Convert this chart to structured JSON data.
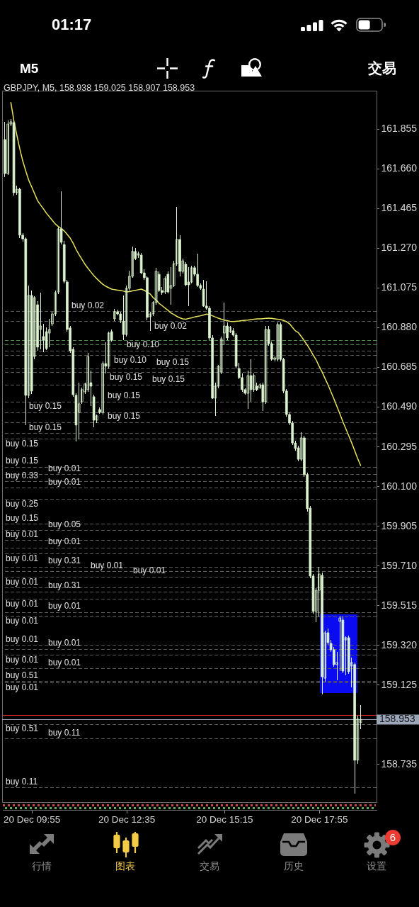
{
  "chart_data": {
    "type": "candlestick",
    "title": "GBPJPY, M5, 158.938 159.025 158.907 158.953",
    "color": "#dcf3cf",
    "categories": [
      null,
      null,
      null,
      null,
      null,
      null,
      null,
      null,
      null,
      "20 Dec 09:55",
      null,
      null,
      null,
      null,
      null,
      null,
      null,
      null,
      null,
      null,
      null,
      null,
      null,
      null,
      null,
      null,
      null,
      null,
      null,
      null,
      null,
      null,
      null,
      null,
      null,
      null,
      null,
      null,
      null,
      null,
      null,
      "20 Dec 12:35",
      null,
      null,
      null,
      null,
      null,
      null,
      null,
      null,
      null,
      null,
      null,
      null,
      null,
      null,
      null,
      null,
      null,
      null,
      null,
      null,
      null,
      null,
      null,
      null,
      null,
      null,
      null,
      null,
      null,
      null,
      null,
      null,
      "20 Dec 15:15",
      null,
      null,
      null,
      null,
      null,
      null,
      null,
      null,
      null,
      null,
      null,
      null,
      null,
      null,
      null,
      null,
      null,
      null,
      null,
      null,
      null,
      null,
      null,
      null,
      null,
      null,
      null,
      null,
      null,
      null,
      null,
      "20 Dec 17:55",
      null,
      null,
      null,
      null,
      null,
      null,
      null,
      null,
      null,
      null,
      null,
      null,
      null,
      null
    ],
    "ohlc": [
      [
        161.803,
        161.89,
        161.618,
        161.636
      ],
      [
        161.636,
        161.897,
        161.629,
        161.879
      ],
      [
        161.879,
        161.904,
        161.869,
        161.89
      ],
      [
        161.886,
        161.897,
        161.528,
        161.542
      ],
      [
        161.542,
        161.576,
        161.531,
        161.559
      ],
      [
        161.559,
        161.566,
        161.319,
        161.333
      ],
      [
        161.333,
        161.343,
        161.301,
        161.315
      ],
      [
        161.315,
        161.322,
        160.4,
        160.546
      ],
      [
        160.546,
        161.086,
        160.532,
        161.037
      ],
      [
        161.037,
        161.061,
        160.553,
        160.567
      ],
      [
        160.737,
        161.033,
        160.723,
        161.026
      ],
      [
        160.991,
        161.009,
        160.765,
        160.783
      ],
      [
        160.87,
        161.051,
        160.772,
        160.887
      ],
      [
        160.835,
        160.897,
        160.758,
        160.817
      ],
      [
        160.859,
        160.88,
        160.769,
        160.776
      ],
      [
        160.852,
        160.922,
        160.783,
        160.87
      ],
      [
        160.897,
        160.957,
        160.887,
        160.946
      ],
      [
        160.946,
        161.061,
        160.936,
        161.051
      ],
      [
        161.054,
        161.375,
        161.044,
        161.364
      ],
      [
        161.364,
        161.549,
        161.287,
        161.298
      ],
      [
        161.287,
        161.305,
        161.096,
        161.106
      ],
      [
        161.103,
        161.113,
        160.859,
        160.87
      ],
      [
        160.877,
        160.887,
        160.755,
        160.765
      ],
      [
        160.772,
        160.783,
        160.539,
        160.549
      ],
      [
        160.546,
        160.556,
        160.319,
        160.4
      ],
      [
        160.462,
        160.608,
        160.33,
        160.504
      ],
      [
        160.514,
        160.584,
        160.504,
        160.574
      ],
      [
        160.563,
        160.608,
        160.553,
        160.602
      ],
      [
        160.574,
        160.755,
        160.563,
        160.737
      ],
      [
        160.608,
        160.668,
        160.494,
        160.591
      ],
      [
        160.539,
        160.549,
        160.389,
        160.424
      ],
      [
        160.424,
        160.452,
        160.41,
        160.445
      ],
      [
        160.476,
        160.487,
        160.455,
        160.462
      ],
      [
        160.462,
        160.713,
        160.452,
        160.702
      ],
      [
        160.702,
        160.807,
        160.654,
        160.689
      ],
      [
        160.689,
        160.859,
        160.678,
        160.852
      ],
      [
        160.859,
        160.87,
        160.81,
        160.817
      ],
      [
        160.922,
        160.971,
        160.911,
        160.957
      ],
      [
        160.957,
        160.967,
        160.939,
        160.946
      ],
      [
        160.946,
        160.957,
        160.901,
        160.915
      ],
      [
        160.911,
        161.037,
        160.817,
        160.845
      ],
      [
        160.845,
        161.086,
        160.835,
        161.072
      ],
      [
        161.072,
        161.159,
        161.061,
        161.131
      ],
      [
        161.131,
        161.277,
        161.124,
        161.253
      ],
      [
        161.253,
        161.27,
        161.211,
        161.218
      ],
      [
        161.235,
        161.253,
        161.221,
        161.242
      ],
      [
        161.235,
        161.246,
        161.141,
        161.148
      ],
      [
        161.148,
        161.166,
        161.113,
        161.124
      ],
      [
        161.124,
        161.131,
        160.915,
        160.929
      ],
      [
        160.932,
        160.957,
        160.863,
        160.946
      ],
      [
        160.946,
        161.009,
        160.936,
        161.002
      ],
      [
        161.002,
        161.173,
        160.991,
        161.155
      ],
      [
        161.141,
        161.155,
        161.054,
        161.061
      ],
      [
        161.061,
        161.079,
        161.04,
        161.051
      ],
      [
        161.054,
        161.131,
        161.044,
        161.12
      ],
      [
        161.141,
        161.155,
        161.047,
        161.054
      ],
      [
        161.072,
        161.176,
        160.991,
        161.086
      ],
      [
        161.086,
        161.207,
        161.079,
        161.193
      ],
      [
        161.193,
        161.472,
        161.183,
        161.312
      ],
      [
        161.312,
        161.333,
        161.131,
        161.155
      ],
      [
        161.155,
        161.218,
        161.145,
        161.207
      ],
      [
        161.19,
        161.2,
        161.082,
        161.089
      ],
      [
        161.103,
        161.176,
        160.985,
        161.089
      ],
      [
        161.103,
        161.183,
        161.096,
        161.173
      ],
      [
        161.173,
        161.183,
        161.131,
        161.141
      ],
      [
        161.141,
        161.242,
        161.079,
        161.086
      ],
      [
        161.086,
        161.096,
        161.065,
        161.072
      ],
      [
        161.068,
        161.113,
        160.981,
        160.985
      ],
      [
        160.985,
        161.106,
        160.967,
        160.974
      ],
      [
        160.974,
        160.985,
        160.817,
        160.828
      ],
      [
        160.828,
        160.842,
        160.528,
        160.532
      ],
      [
        160.532,
        160.608,
        160.445,
        160.591
      ],
      [
        160.591,
        160.696,
        160.581,
        160.689
      ],
      [
        160.661,
        160.835,
        160.65,
        160.824
      ],
      [
        160.852,
        161.002,
        160.793,
        160.887
      ],
      [
        160.887,
        160.904,
        160.817,
        160.828
      ],
      [
        160.859,
        160.887,
        160.852,
        160.88
      ],
      [
        160.863,
        160.877,
        160.835,
        160.842
      ],
      [
        160.842,
        160.852,
        160.678,
        160.689
      ],
      [
        160.678,
        160.706,
        160.626,
        160.633
      ],
      [
        160.633,
        160.654,
        160.563,
        160.574
      ],
      [
        160.574,
        160.581,
        160.549,
        160.556
      ],
      [
        160.556,
        160.668,
        160.48,
        160.643
      ],
      [
        160.643,
        160.723,
        160.514,
        160.574
      ],
      [
        160.574,
        160.654,
        160.563,
        160.643
      ],
      [
        160.591,
        160.608,
        160.567,
        160.574
      ],
      [
        160.584,
        160.605,
        160.577,
        160.598
      ],
      [
        160.598,
        160.608,
        160.469,
        160.514
      ],
      [
        160.514,
        160.887,
        160.504,
        160.87
      ],
      [
        160.87,
        160.887,
        160.79,
        160.8
      ],
      [
        160.8,
        160.81,
        160.716,
        160.723
      ],
      [
        160.723,
        160.737,
        160.713,
        160.73
      ],
      [
        160.723,
        160.904,
        160.713,
        160.894
      ],
      [
        160.894,
        160.904,
        160.713,
        160.723
      ],
      [
        160.723,
        160.73,
        160.556,
        160.567
      ],
      [
        160.567,
        160.577,
        160.441,
        160.452
      ],
      [
        160.452,
        160.462,
        160.4,
        160.41
      ],
      [
        160.41,
        160.42,
        160.302,
        160.312
      ],
      [
        160.312,
        160.323,
        160.274,
        160.285
      ],
      [
        160.288,
        160.299,
        160.222,
        160.232
      ],
      [
        160.232,
        160.365,
        160.222,
        160.337
      ],
      [
        160.337,
        160.347,
        160.145,
        160.156
      ],
      [
        160.156,
        160.166,
        159.975,
        159.989
      ],
      [
        159.992,
        160.003,
        159.647,
        159.658
      ],
      [
        159.658,
        159.668,
        159.473,
        159.484
      ],
      [
        159.484,
        159.599,
        159.432,
        159.588
      ],
      [
        159.588,
        159.703,
        159.459,
        159.668
      ],
      [
        159.661,
        159.675,
        159.076,
        159.163
      ],
      [
        159.156,
        159.39,
        159.139,
        159.379
      ],
      [
        159.379,
        159.4,
        159.32,
        159.331
      ],
      [
        159.327,
        159.344,
        159.285,
        159.296
      ],
      [
        159.296,
        159.31,
        159.212,
        159.223
      ],
      [
        159.223,
        159.285,
        159.146,
        159.233
      ],
      [
        159.435,
        159.459,
        159.191,
        159.452
      ],
      [
        159.442,
        159.459,
        159.181,
        159.191
      ],
      [
        159.344,
        159.362,
        159.17,
        159.355
      ],
      [
        159.355,
        159.365,
        159.177,
        159.188
      ],
      [
        159.216,
        159.257,
        159.111,
        159.233
      ],
      [
        159.223,
        159.233,
        158.589,
        158.753
      ],
      [
        158.753,
        158.972,
        158.735,
        158.955
      ],
      [
        158.938,
        159.025,
        158.907,
        158.953
      ]
    ],
    "series": [
      {
        "type": "line",
        "color": "#e9e35c",
        "values": [
          null,
          null,
          161.985,
          161.897,
          161.826,
          161.758,
          161.698,
          161.65,
          161.604,
          161.571,
          161.537,
          161.503,
          161.482,
          161.462,
          161.441,
          161.423,
          161.406,
          161.388,
          161.376,
          161.366,
          161.354,
          161.337,
          161.319,
          161.294,
          161.263,
          161.237,
          161.214,
          161.19,
          161.171,
          161.152,
          161.134,
          161.119,
          161.105,
          161.092,
          161.082,
          161.075,
          161.068,
          161.065,
          161.063,
          161.061,
          161.058,
          161.054,
          161.056,
          161.059,
          161.062,
          161.065,
          161.068,
          161.062,
          161.054,
          161.044,
          161.026,
          161.015,
          160.998,
          160.987,
          160.975,
          160.964,
          160.951,
          160.943,
          160.934,
          160.927,
          160.922,
          160.92,
          160.924,
          160.927,
          160.931,
          160.934,
          160.937,
          160.941,
          160.945,
          160.943,
          160.937,
          160.931,
          160.925,
          160.92,
          160.916,
          160.913,
          160.91,
          160.909,
          160.91,
          160.911,
          160.913,
          160.915,
          160.916,
          160.918,
          160.92,
          160.922,
          160.922,
          160.923,
          160.924,
          160.925,
          160.924,
          160.922,
          160.92,
          160.918,
          160.914,
          160.908,
          160.898,
          160.88,
          160.863,
          160.854,
          160.835,
          160.814,
          160.793,
          160.769,
          160.744,
          160.72,
          160.689,
          160.661,
          160.629,
          160.598,
          160.563,
          160.528,
          160.492,
          160.455,
          160.417,
          160.382,
          160.347,
          160.312,
          160.274,
          160.236,
          160.201
        ]
      }
    ],
    "ylim": [
      158.547,
      162.043
    ],
    "yticks": [
      161.855,
      {
        "value": 161.66,
        "label": "161.660"
      },
      161.465,
      {
        "value": 161.27,
        "label": "161.270"
      },
      161.075,
      {
        "value": 160.88,
        "label": "160.880"
      },
      160.685,
      {
        "value": 160.49,
        "label": "160.490"
      },
      160.295,
      {
        "value": 160.1,
        "label": "160.100"
      },
      159.905,
      {
        "value": 159.71,
        "label": "159.710"
      },
      159.515,
      {
        "value": 159.32,
        "label": "159.320"
      },
      159.125,
      158.735
    ],
    "ref_lines": [
      {
        "axis": "y",
        "value": 160.957,
        "label": "buy 0.02",
        "color": "#5c5c5c",
        "line_style": "dashed"
      },
      {
        "axis": "y",
        "value": 160.908,
        "label": "buy 0.02",
        "color": "#5c5c5c",
        "line_style": "dashed"
      },
      {
        "axis": "y",
        "value": 160.814,
        "color": "#4f8a4f",
        "line_style": "dashed"
      },
      {
        "axis": "y",
        "value": 160.793,
        "color": "#4f8a4f",
        "line_style": "dashed"
      },
      {
        "axis": "y",
        "value": 160.765,
        "label": "buy 0.10",
        "color": "#5c5c5c",
        "line_style": "dashed"
      },
      {
        "axis": "y",
        "value": 160.741,
        "label": "buy 0.10",
        "color": "#5c5c5c",
        "line_style": "dashed"
      },
      {
        "axis": "y",
        "value": 160.677,
        "label": "buy 0.15",
        "color": "#5c5c5c",
        "line_style": "dashed"
      },
      {
        "axis": "y",
        "value": 160.595,
        "label": "buy 0.15",
        "color": "#5c5c5c",
        "line_style": "dashed"
      },
      {
        "axis": "y",
        "value": 160.514,
        "label": "buy 0.15",
        "color": "#5c5c5c",
        "line_style": "dashed"
      },
      {
        "axis": "y",
        "value": 160.462,
        "label": "buy 0.15",
        "color": "#5c5c5c",
        "line_style": "dashed"
      },
      {
        "axis": "y",
        "value": 160.413,
        "label": "buy 0.15",
        "color": "#5c5c5c",
        "line_style": "dashed"
      },
      {
        "axis": "y",
        "value": 160.358,
        "label": "buy 0.15",
        "color": "#5c5c5c",
        "line_style": "dashed"
      },
      {
        "axis": "y",
        "value": 160.33,
        "label": "buy 0.15",
        "color": "#5c5c5c",
        "line_style": "dashed"
      },
      {
        "axis": "y",
        "value": 160.194,
        "label": "buy 0.15",
        "color": "#5c5c5c",
        "line_style": "dashed"
      },
      {
        "axis": "y",
        "value": 160.156,
        "label": "buy 0.01",
        "color": "#5c5c5c",
        "line_style": "dashed"
      },
      {
        "axis": "y",
        "value": 160.121,
        "label": "buy 0.33",
        "color": "#5c5c5c",
        "line_style": "dashed"
      },
      {
        "axis": "y",
        "value": 160.09,
        "label": "buy 0.01",
        "color": "#5c5c5c",
        "line_style": "dashed"
      },
      {
        "axis": "y",
        "value": 160.034,
        "label": "buy 0.25",
        "color": "#5c5c5c",
        "line_style": "dashed"
      },
      {
        "axis": "y",
        "value": 159.912,
        "label": "buy 0.15",
        "color": "#5c5c5c",
        "line_style": "dashed"
      },
      {
        "axis": "y",
        "value": 159.881,
        "label": "buy 0.05",
        "color": "#5c5c5c",
        "line_style": "dashed"
      },
      {
        "axis": "y",
        "value": 159.832,
        "label": "buy 0.01",
        "color": "#5c5c5c",
        "line_style": "dashed"
      },
      {
        "axis": "y",
        "value": 159.797,
        "label": "buy 0.01",
        "color": "#5c5c5c",
        "line_style": "dashed"
      },
      {
        "axis": "y",
        "value": 159.766,
        "label": "buy 0.01",
        "color": "#5c5c5c",
        "line_style": "dashed"
      },
      {
        "axis": "y",
        "value": 159.703,
        "label": "buy 0.31",
        "color": "#5c5c5c",
        "line_style": "dashed"
      },
      {
        "axis": "y",
        "value": 159.679,
        "label": "buy 0.01",
        "color": "#5c5c5c",
        "line_style": "dashed"
      },
      {
        "axis": "y",
        "value": 159.654,
        "label": "buy 0.01",
        "color": "#5c5c5c",
        "line_style": "dashed"
      },
      {
        "axis": "y",
        "value": 159.599,
        "label": "buy 0.01",
        "color": "#5c5c5c",
        "line_style": "dashed"
      },
      {
        "axis": "y",
        "value": 159.543,
        "label": "buy 0.01",
        "color": "#5c5c5c",
        "line_style": "dashed"
      },
      {
        "axis": "y",
        "value": 159.48,
        "label": "buy 0.01",
        "color": "#5c5c5c",
        "line_style": "dashed"
      },
      {
        "axis": "y",
        "value": 159.459,
        "label": "buy 0.01",
        "color": "#5c5c5c",
        "line_style": "dashed"
      },
      {
        "axis": "y",
        "value": 159.317,
        "label": "buy 0.01",
        "color": "#5c5c5c",
        "line_style": "dashed"
      },
      {
        "axis": "y",
        "value": 159.268,
        "label": "buy 0.01",
        "color": "#5c5c5c",
        "line_style": "dashed"
      },
      {
        "axis": "y",
        "value": 159.202,
        "label": "buy 0.01",
        "color": "#5c5c5c",
        "line_style": "dashed"
      },
      {
        "axis": "y",
        "value": 159.139,
        "label": "buy 0.51",
        "color": "#5c5c5c",
        "line_style": "dashed"
      },
      {
        "axis": "y",
        "value": 158.972,
        "color": "#e0302c",
        "line_style": "solid"
      },
      {
        "axis": "y",
        "value": 158.93,
        "label": "buy 0.51",
        "color": "#5c5c5c",
        "line_style": "dashed"
      },
      {
        "axis": "y",
        "value": 158.857,
        "label": "buy 0.11",
        "color": "#5c5c5c",
        "line_style": "dashed"
      },
      {
        "axis": "y",
        "value": 158.617,
        "label": "buy 0.11",
        "color": "#5c5c5c",
        "line_style": "dashed"
      },
      {
        "axis": "y",
        "value": 159.581,
        "label": "buy 0.31",
        "color": "#5c5c5c",
        "line_style": "dashed"
      },
      {
        "axis": "y",
        "value": 159.299,
        "label": "buy 0.01",
        "color": "#5c5c5c",
        "line_style": "dashed"
      },
      {
        "axis": "y",
        "value": 159.132,
        "label": "buy 0.01",
        "color": "#5c5c5c",
        "line_style": "dashed"
      },
      {
        "axis": "y",
        "value": 158.953,
        "label": "158.953",
        "color": "#9ba6b6",
        "line_style": "solid"
      },
      {
        "axis": "y",
        "value": 160.658,
        "label": "buy 0.15",
        "color": "#5c5c5c",
        "line_style": "dashed"
      }
    ],
    "annotations": [
      "01:17",
      "M5",
      "交易",
      "行情",
      "图表",
      "交易",
      "历史",
      "设置",
      "6"
    ]
  }
}
